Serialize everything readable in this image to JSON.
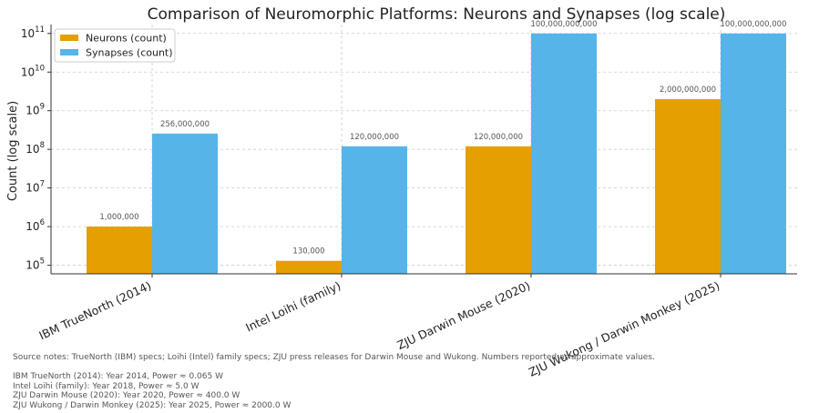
{
  "chart_data": {
    "type": "bar",
    "scale": "log",
    "title": "Comparison of Neuromorphic Platforms: Neurons and Synapses (log scale)",
    "xlabel": "",
    "ylabel": "Count (log scale)",
    "ylim": [
      60000,
      170000000000
    ],
    "categories": [
      "IBM TrueNorth (2014)",
      "Intel Loihi (family)",
      "ZJU Darwin Mouse (2020)",
      "ZJU Wukong / Darwin Monkey (2025)"
    ],
    "series": [
      {
        "name": "Neurons (count)",
        "color": "#E69F00",
        "values": [
          1000000,
          130000,
          120000000,
          2000000000
        ],
        "labels": [
          "1,000,000",
          "130,000",
          "120,000,000",
          "2,000,000,000"
        ]
      },
      {
        "name": "Synapses (count)",
        "color": "#56B4E9",
        "values": [
          256000000,
          120000000,
          100000000000,
          100000000000
        ],
        "labels": [
          "256,000,000",
          "120,000,000",
          "100,000,000,000",
          "100,000,000,000"
        ]
      }
    ],
    "yticks": [
      {
        "exp": 5,
        "base": "10",
        "sup": "5"
      },
      {
        "exp": 6,
        "base": "10",
        "sup": "6"
      },
      {
        "exp": 7,
        "base": "10",
        "sup": "7"
      },
      {
        "exp": 8,
        "base": "10",
        "sup": "8"
      },
      {
        "exp": 9,
        "base": "10",
        "sup": "9"
      },
      {
        "exp": 10,
        "base": "10",
        "sup": "10"
      },
      {
        "exp": 11,
        "base": "10",
        "sup": "11"
      }
    ],
    "grid": true,
    "legend_position": "top-left"
  },
  "notes": {
    "source": "Source notes: TrueNorth (IBM) specs; Loihi (Intel) family specs; ZJU press releases for Darwin Mouse and Wukong. Numbers reported as approximate values.",
    "lines": [
      "IBM TrueNorth (2014): Year 2014, Power ≈ 0.065 W",
      "Intel Loihi (family): Year 2018, Power ≈ 5.0 W",
      "ZJU Darwin Mouse (2020): Year 2020, Power ≈ 400.0 W",
      "ZJU Wukong / Darwin Monkey (2025): Year 2025, Power ≈ 2000.0 W"
    ]
  }
}
